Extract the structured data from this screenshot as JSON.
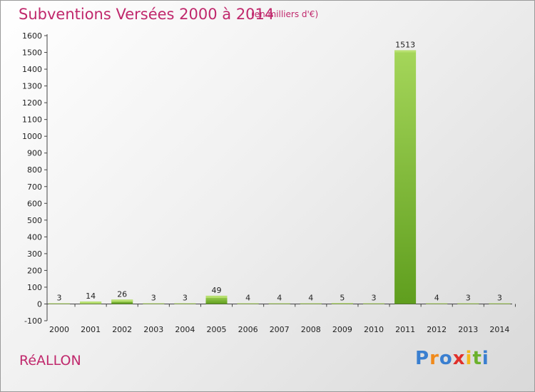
{
  "title": "Subventions Versées 2000 à 2014",
  "unit_label": "(en milliers d'€)",
  "commune": "RéALLON",
  "logo": {
    "letters": [
      "P",
      "r",
      "o",
      "x",
      "i",
      "t",
      "i"
    ],
    "colors": [
      "#3a7fd0",
      "#f08a1c",
      "#3a7fd0",
      "#e0302a",
      "#f2b81c",
      "#6bb12c",
      "#3a7fd0"
    ]
  },
  "colors": {
    "bar_light": "#a5d65a",
    "bar_dark": "#5f9e1e",
    "accent": "#c0286c"
  },
  "chart_data": {
    "type": "bar",
    "categories": [
      "2000",
      "2001",
      "2002",
      "2003",
      "2004",
      "2005",
      "2006",
      "2007",
      "2008",
      "2009",
      "2010",
      "2011",
      "2012",
      "2013",
      "2014"
    ],
    "values": [
      3,
      14,
      26,
      3,
      3,
      49,
      4,
      4,
      4,
      5,
      3,
      1513,
      4,
      3,
      3
    ],
    "data_labels": [
      "3",
      "14",
      "26",
      "3",
      "3",
      "49",
      "4",
      "4",
      "4",
      "5",
      "3",
      "1513",
      "4",
      "3",
      "3"
    ],
    "yticks": [
      "-100",
      "0",
      "100",
      "200",
      "300",
      "400",
      "500",
      "600",
      "700",
      "800",
      "900",
      "1000",
      "1100",
      "1200",
      "1300",
      "1400",
      "1500",
      "1600"
    ],
    "ylim": [
      -100,
      1600
    ],
    "grid": false,
    "legend": "none"
  }
}
